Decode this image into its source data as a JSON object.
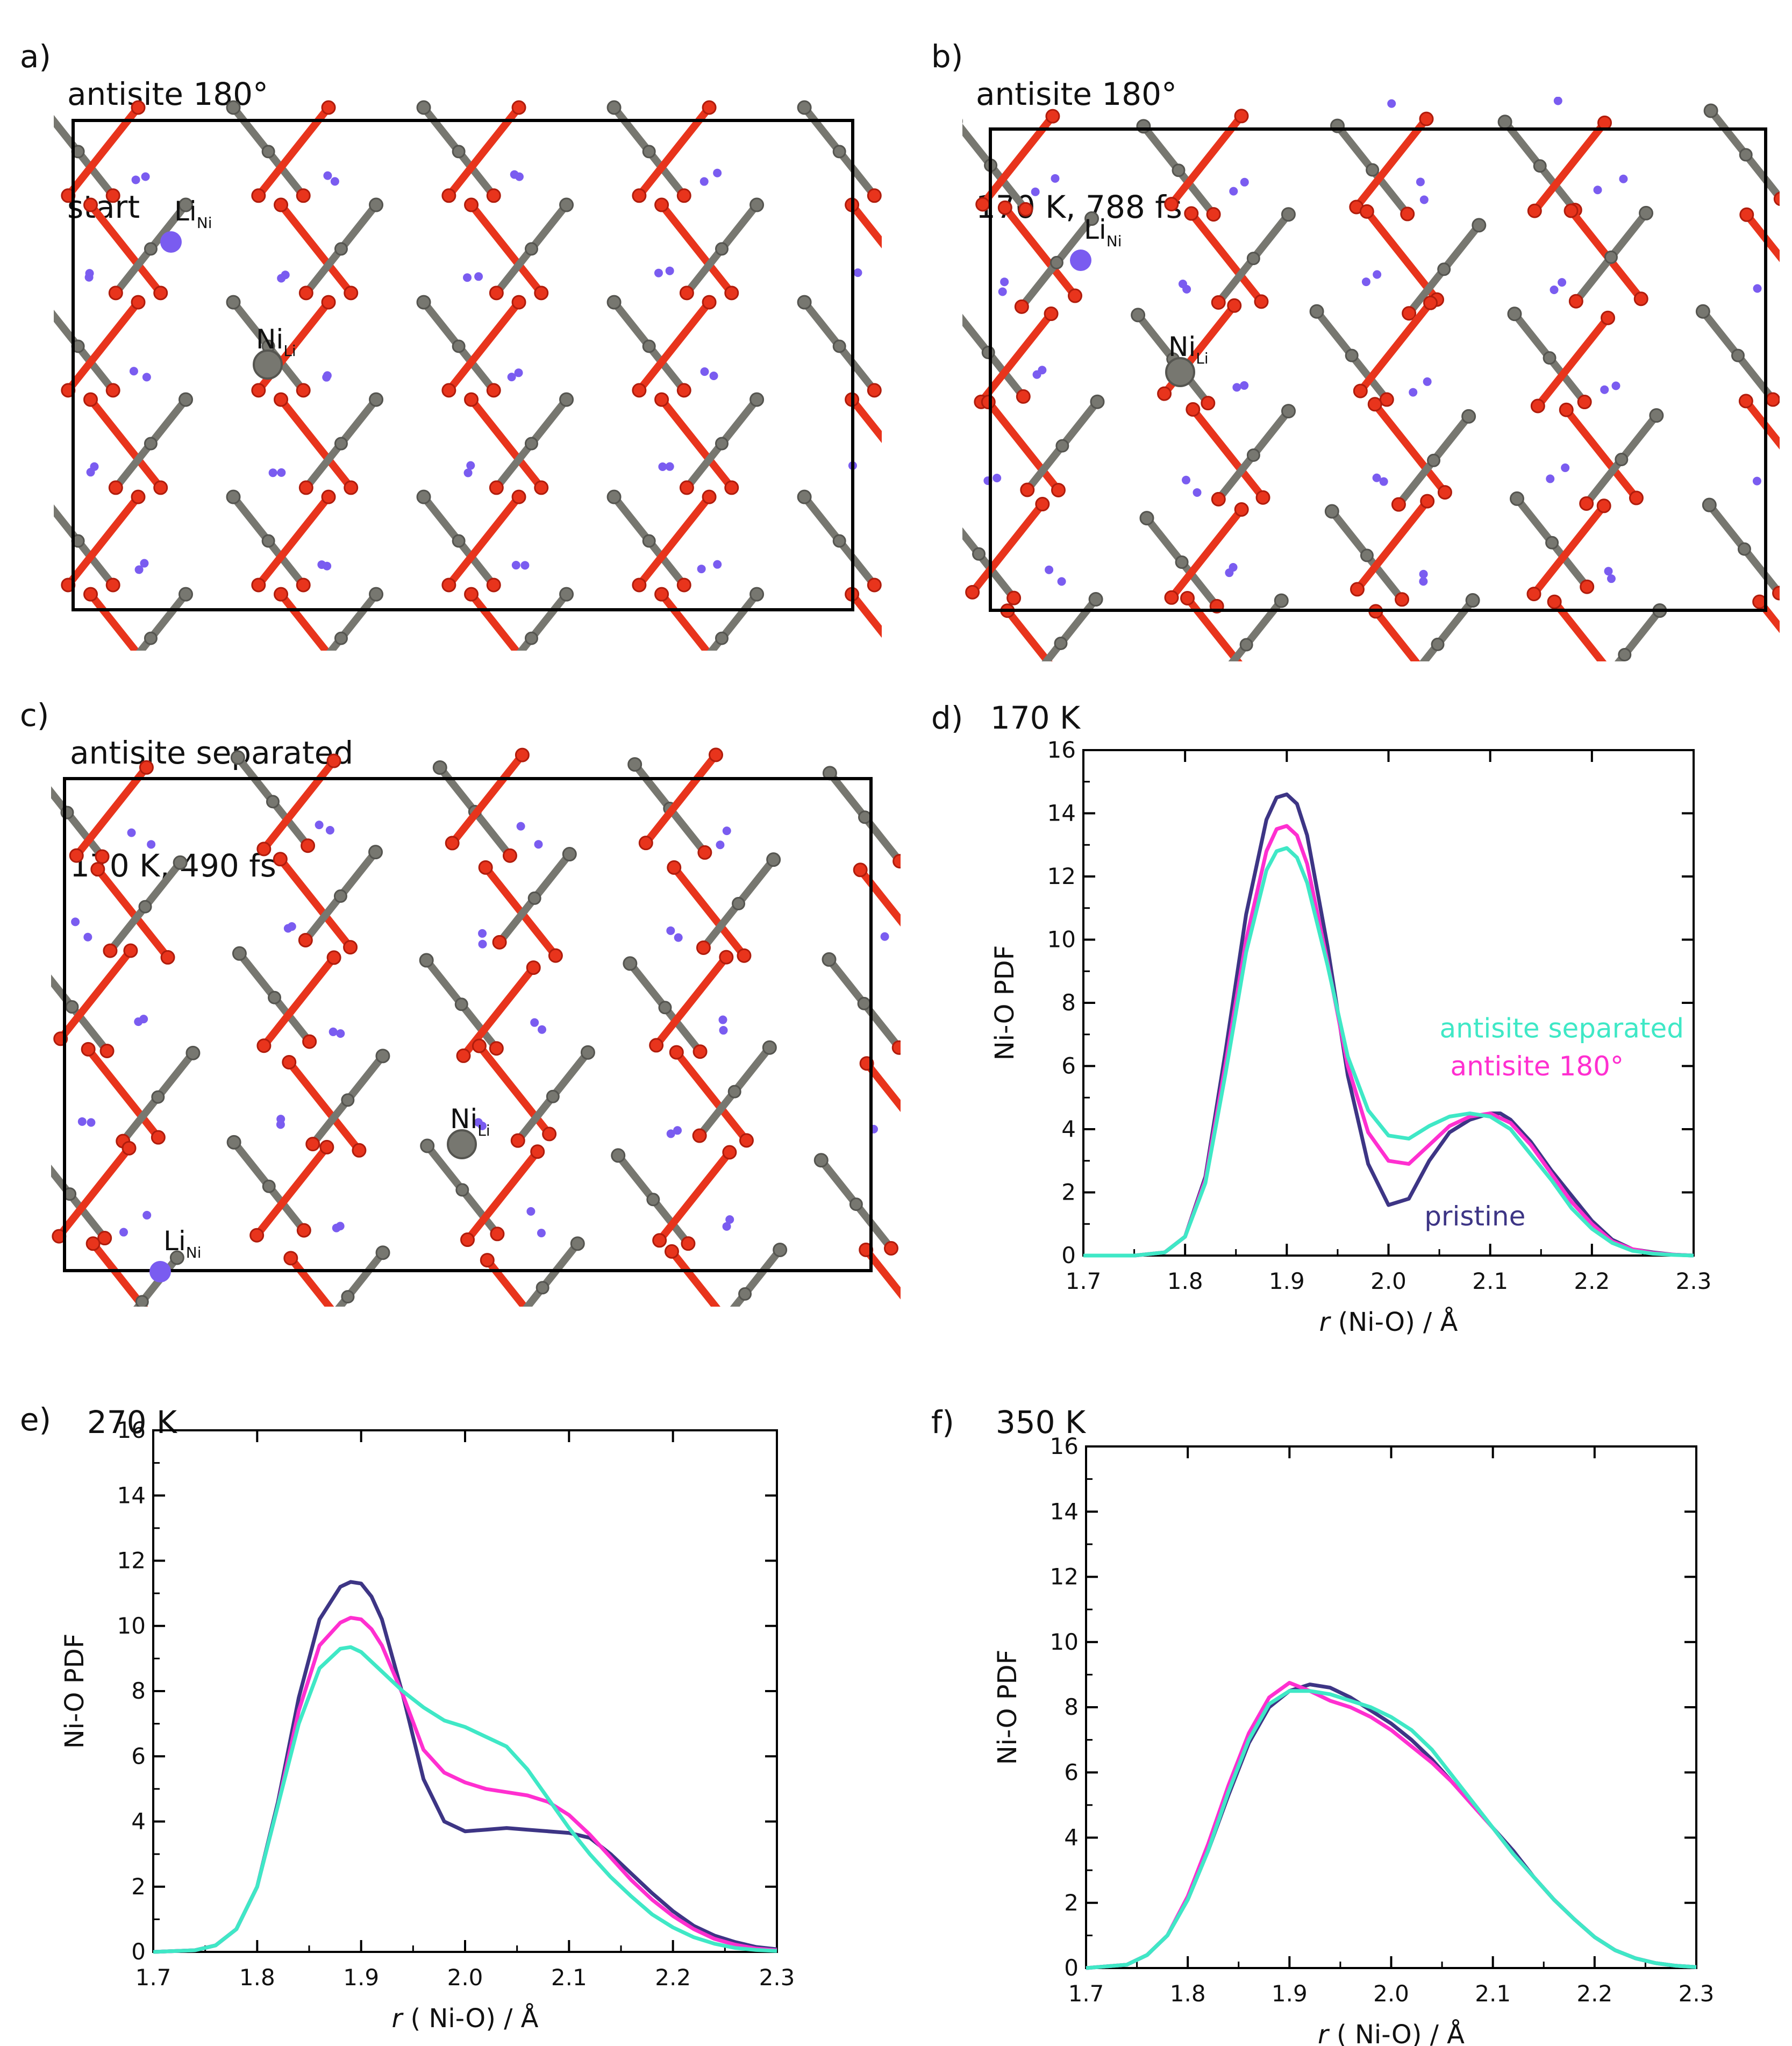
{
  "colors": {
    "pristine": "#3d3585",
    "antisite_180": "#ff2fd0",
    "antisite_separated": "#3fe8c6",
    "oxygen": "#e8341c",
    "oxygen_dark": "#b01c0c",
    "nickel": "#777770",
    "nickel_dark": "#555550",
    "lithium": "#7a5cf0",
    "frame": "#000000"
  },
  "panels": {
    "a": {
      "letter": "a)",
      "line1": "antisite 180°",
      "line2": "start",
      "li_main": "Li",
      "li_sub": "Ni",
      "ni_main": "Ni",
      "ni_sub": "Li"
    },
    "b": {
      "letter": "b)",
      "line1": "antisite 180°",
      "line2": "170 K, 788 fs",
      "li_main": "Li",
      "li_sub": "Ni",
      "ni_main": "Ni",
      "ni_sub": "Li"
    },
    "c": {
      "letter": "c)",
      "line1": "antisite separated",
      "line2": "170 K, 490 fs",
      "li_main": "Li",
      "li_sub": "Ni",
      "ni_main": "Ni",
      "ni_sub": "Li"
    },
    "d": {
      "letter": "d)",
      "line1": "170 K"
    },
    "e": {
      "letter": "e)",
      "line1": "270 K"
    },
    "f": {
      "letter": "f)",
      "line1": "350 K"
    }
  },
  "chart_data": [
    {
      "panel": "d",
      "type": "line",
      "title": "170 K",
      "xlabel_italic": "r",
      "xlabel_rest": " (Ni-O) / Å",
      "ylabel": "Ni-O PDF",
      "xlim": [
        1.7,
        2.3
      ],
      "ylim": [
        0,
        16
      ],
      "xticks": [
        "1.7",
        "1.8",
        "1.9",
        "2.0",
        "2.1",
        "2.2",
        "2.3"
      ],
      "yticks": [
        "0",
        "2",
        "4",
        "6",
        "8",
        "10",
        "12",
        "14",
        "16"
      ],
      "annotations": [
        "antisite separated",
        "antisite 180°",
        "pristine"
      ],
      "series": [
        {
          "name": "pristine",
          "color": "#3d3585",
          "x": [
            1.7,
            1.75,
            1.78,
            1.8,
            1.82,
            1.84,
            1.86,
            1.88,
            1.89,
            1.9,
            1.91,
            1.92,
            1.94,
            1.96,
            1.98,
            2.0,
            2.02,
            2.04,
            2.06,
            2.08,
            2.1,
            2.11,
            2.12,
            2.14,
            2.16,
            2.18,
            2.2,
            2.22,
            2.24,
            2.26,
            2.28,
            2.3
          ],
          "y": [
            0,
            0,
            0.1,
            0.6,
            2.5,
            6.5,
            10.8,
            13.8,
            14.5,
            14.6,
            14.3,
            13.3,
            9.8,
            5.7,
            2.9,
            1.6,
            1.8,
            3.0,
            3.9,
            4.3,
            4.5,
            4.5,
            4.3,
            3.6,
            2.7,
            1.9,
            1.1,
            0.5,
            0.2,
            0.1,
            0.03,
            0
          ]
        },
        {
          "name": "antisite 180°",
          "color": "#ff2fd0",
          "x": [
            1.7,
            1.75,
            1.78,
            1.8,
            1.82,
            1.84,
            1.86,
            1.88,
            1.89,
            1.9,
            1.91,
            1.92,
            1.94,
            1.96,
            1.98,
            2.0,
            2.02,
            2.04,
            2.06,
            2.08,
            2.1,
            2.12,
            2.14,
            2.16,
            2.18,
            2.2,
            2.22,
            2.24,
            2.26,
            2.28,
            2.3
          ],
          "y": [
            0,
            0,
            0.1,
            0.6,
            2.4,
            6.1,
            10.0,
            12.8,
            13.5,
            13.6,
            13.3,
            12.4,
            9.3,
            6.0,
            3.9,
            3.0,
            2.9,
            3.5,
            4.1,
            4.4,
            4.5,
            4.2,
            3.5,
            2.6,
            1.7,
            1.0,
            0.45,
            0.2,
            0.08,
            0.03,
            0
          ]
        },
        {
          "name": "antisite separated",
          "color": "#3fe8c6",
          "x": [
            1.7,
            1.75,
            1.78,
            1.8,
            1.82,
            1.84,
            1.86,
            1.88,
            1.89,
            1.9,
            1.91,
            1.92,
            1.94,
            1.96,
            1.98,
            2.0,
            2.02,
            2.04,
            2.06,
            2.08,
            2.1,
            2.12,
            2.14,
            2.16,
            2.18,
            2.2,
            2.22,
            2.24,
            2.26,
            2.28,
            2.3
          ],
          "y": [
            0,
            0,
            0.1,
            0.6,
            2.3,
            5.8,
            9.6,
            12.2,
            12.8,
            12.9,
            12.6,
            11.8,
            9.2,
            6.3,
            4.6,
            3.8,
            3.7,
            4.1,
            4.4,
            4.5,
            4.4,
            4.0,
            3.2,
            2.4,
            1.5,
            0.85,
            0.4,
            0.15,
            0.06,
            0.02,
            0
          ]
        }
      ]
    },
    {
      "panel": "e",
      "type": "line",
      "title": "270 K",
      "xlabel_italic": "r",
      "xlabel_rest": " ( Ni-O) / Å",
      "ylabel": "Ni-O PDF",
      "xlim": [
        1.7,
        2.3
      ],
      "ylim": [
        0,
        16
      ],
      "xticks": [
        "1.7",
        "1.8",
        "1.9",
        "2.0",
        "2.1",
        "2.2",
        "2.3"
      ],
      "yticks": [
        "0",
        "2",
        "4",
        "6",
        "8",
        "10",
        "12",
        "14",
        "16"
      ],
      "series": [
        {
          "name": "pristine",
          "color": "#3d3585",
          "x": [
            1.7,
            1.74,
            1.76,
            1.78,
            1.8,
            1.82,
            1.84,
            1.86,
            1.88,
            1.89,
            1.9,
            1.91,
            1.92,
            1.94,
            1.96,
            1.98,
            2.0,
            2.02,
            2.04,
            2.06,
            2.08,
            2.1,
            2.12,
            2.14,
            2.16,
            2.18,
            2.2,
            2.22,
            2.24,
            2.26,
            2.28,
            2.3
          ],
          "y": [
            0,
            0.05,
            0.2,
            0.7,
            2.0,
            4.6,
            7.8,
            10.2,
            11.2,
            11.35,
            11.3,
            10.9,
            10.2,
            7.9,
            5.3,
            4.0,
            3.7,
            3.75,
            3.8,
            3.75,
            3.7,
            3.65,
            3.5,
            3.0,
            2.4,
            1.8,
            1.25,
            0.8,
            0.5,
            0.3,
            0.15,
            0.08
          ]
        },
        {
          "name": "antisite 180°",
          "color": "#ff2fd0",
          "x": [
            1.7,
            1.74,
            1.76,
            1.78,
            1.8,
            1.82,
            1.84,
            1.86,
            1.88,
            1.89,
            1.9,
            1.91,
            1.92,
            1.94,
            1.96,
            1.98,
            2.0,
            2.02,
            2.04,
            2.06,
            2.08,
            2.1,
            2.12,
            2.14,
            2.16,
            2.18,
            2.2,
            2.22,
            2.24,
            2.26,
            2.28,
            2.3
          ],
          "y": [
            0,
            0.05,
            0.2,
            0.7,
            2.0,
            4.5,
            7.4,
            9.4,
            10.1,
            10.25,
            10.2,
            9.9,
            9.4,
            7.9,
            6.2,
            5.5,
            5.2,
            5.0,
            4.9,
            4.8,
            4.6,
            4.2,
            3.6,
            2.9,
            2.2,
            1.6,
            1.1,
            0.7,
            0.4,
            0.22,
            0.1,
            0.05
          ]
        },
        {
          "name": "antisite separated",
          "color": "#3fe8c6",
          "x": [
            1.7,
            1.74,
            1.76,
            1.78,
            1.8,
            1.82,
            1.84,
            1.86,
            1.88,
            1.89,
            1.9,
            1.91,
            1.92,
            1.94,
            1.96,
            1.98,
            2.0,
            2.02,
            2.04,
            2.06,
            2.08,
            2.1,
            2.12,
            2.14,
            2.16,
            2.18,
            2.2,
            2.22,
            2.24,
            2.26,
            2.28,
            2.3
          ],
          "y": [
            0,
            0.05,
            0.2,
            0.7,
            2.0,
            4.5,
            7.0,
            8.7,
            9.3,
            9.35,
            9.2,
            8.9,
            8.6,
            8.0,
            7.5,
            7.1,
            6.9,
            6.6,
            6.3,
            5.6,
            4.7,
            3.8,
            3.0,
            2.3,
            1.7,
            1.15,
            0.75,
            0.45,
            0.25,
            0.12,
            0.06,
            0.03
          ]
        }
      ]
    },
    {
      "panel": "f",
      "type": "line",
      "title": "350 K",
      "xlabel_italic": "r",
      "xlabel_rest": " ( Ni-O) / Å",
      "ylabel": "Ni-O PDF",
      "xlim": [
        1.7,
        2.3
      ],
      "ylim": [
        0,
        16
      ],
      "xticks": [
        "1.7",
        "1.8",
        "1.9",
        "2.0",
        "2.1",
        "2.2",
        "2.3"
      ],
      "yticks": [
        "0",
        "2",
        "4",
        "6",
        "8",
        "10",
        "12",
        "14",
        "16"
      ],
      "series": [
        {
          "name": "pristine",
          "color": "#3d3585",
          "x": [
            1.7,
            1.74,
            1.76,
            1.78,
            1.8,
            1.82,
            1.84,
            1.86,
            1.88,
            1.9,
            1.92,
            1.94,
            1.96,
            1.98,
            2.0,
            2.02,
            2.04,
            2.06,
            2.08,
            2.1,
            2.12,
            2.14,
            2.16,
            2.18,
            2.2,
            2.22,
            2.24,
            2.26,
            2.28,
            2.3
          ],
          "y": [
            0,
            0.1,
            0.4,
            1.0,
            2.1,
            3.6,
            5.3,
            6.9,
            8.0,
            8.5,
            8.7,
            8.6,
            8.3,
            7.9,
            7.5,
            7.0,
            6.4,
            5.7,
            5.0,
            4.3,
            3.6,
            2.8,
            2.1,
            1.5,
            0.95,
            0.55,
            0.3,
            0.15,
            0.07,
            0.03
          ]
        },
        {
          "name": "antisite 180°",
          "color": "#ff2fd0",
          "x": [
            1.7,
            1.74,
            1.76,
            1.78,
            1.8,
            1.82,
            1.84,
            1.86,
            1.88,
            1.9,
            1.92,
            1.94,
            1.96,
            1.98,
            2.0,
            2.02,
            2.04,
            2.06,
            2.08,
            2.1,
            2.12,
            2.14,
            2.16,
            2.18,
            2.2,
            2.22,
            2.24,
            2.26,
            2.28,
            2.3
          ],
          "y": [
            0,
            0.1,
            0.4,
            1.0,
            2.2,
            3.8,
            5.6,
            7.2,
            8.3,
            8.75,
            8.5,
            8.2,
            8.0,
            7.7,
            7.3,
            6.8,
            6.3,
            5.7,
            5.0,
            4.3,
            3.5,
            2.8,
            2.1,
            1.5,
            0.95,
            0.55,
            0.3,
            0.15,
            0.07,
            0.03
          ]
        },
        {
          "name": "antisite separated",
          "color": "#3fe8c6",
          "x": [
            1.7,
            1.74,
            1.76,
            1.78,
            1.8,
            1.82,
            1.84,
            1.86,
            1.88,
            1.9,
            1.92,
            1.94,
            1.96,
            1.98,
            2.0,
            2.02,
            2.04,
            2.06,
            2.08,
            2.1,
            2.12,
            2.14,
            2.16,
            2.18,
            2.2,
            2.22,
            2.24,
            2.26,
            2.28,
            2.3
          ],
          "y": [
            0,
            0.1,
            0.4,
            1.0,
            2.1,
            3.6,
            5.4,
            7.0,
            8.1,
            8.5,
            8.5,
            8.4,
            8.2,
            8.0,
            7.7,
            7.3,
            6.7,
            5.9,
            5.1,
            4.3,
            3.5,
            2.8,
            2.1,
            1.5,
            0.95,
            0.55,
            0.3,
            0.15,
            0.07,
            0.03
          ]
        }
      ]
    }
  ]
}
